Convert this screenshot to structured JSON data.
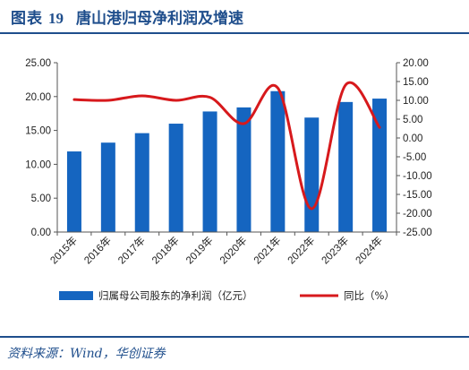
{
  "title": {
    "label": "图表",
    "number": "19",
    "text": "唐山港归母净利润及增速"
  },
  "source": "资料来源：Wind，华创证券",
  "colors": {
    "bar": "#1565c0",
    "line": "#d7191c",
    "title": "#1f4e8c"
  },
  "chart_data": {
    "type": "bar",
    "categories": [
      "2015年",
      "2016年",
      "2017年",
      "2018年",
      "2019年",
      "2020年",
      "2021年",
      "2022年",
      "2023年",
      "2024年"
    ],
    "series": [
      {
        "name": "归属母公司股东的净利润（亿元）",
        "type": "bar",
        "axis": "left",
        "values": [
          11.9,
          13.2,
          14.6,
          16.0,
          17.8,
          18.4,
          20.8,
          16.9,
          19.2,
          19.7
        ]
      },
      {
        "name": "同比（%）",
        "type": "line",
        "axis": "right",
        "values": [
          10.2,
          10.0,
          11.2,
          10.0,
          10.8,
          3.8,
          13.3,
          -18.8,
          14.1,
          2.8
        ]
      }
    ],
    "y_left": {
      "min": 0,
      "max": 25,
      "step": 5,
      "ticks": [
        "0.00",
        "5.00",
        "10.00",
        "15.00",
        "20.00",
        "25.00"
      ]
    },
    "y_right": {
      "min": -25,
      "max": 20,
      "step": 5,
      "ticks": [
        "-25.00",
        "-20.00",
        "-15.00",
        "-10.00",
        "-5.00",
        "0.00",
        "5.00",
        "10.00",
        "15.00",
        "20.00"
      ]
    },
    "legend_position": "bottom",
    "grid": false
  }
}
